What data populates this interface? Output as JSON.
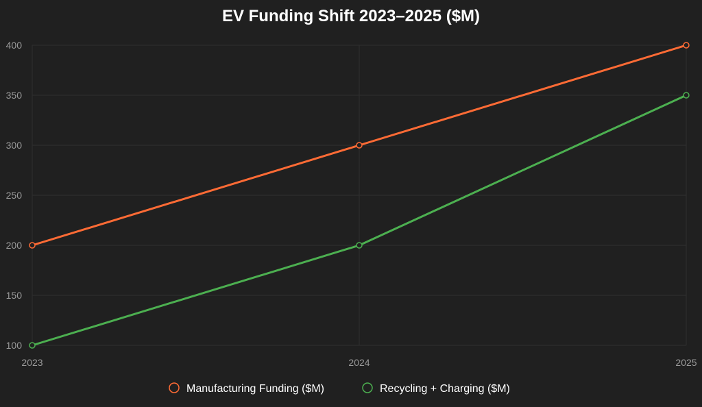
{
  "chart_data": {
    "type": "line",
    "title": "EV Funding Shift 2023–2025 ($M)",
    "xlabel": "",
    "ylabel": "",
    "x": [
      "2023",
      "2024",
      "2025"
    ],
    "ylim": [
      100,
      400
    ],
    "yticks": [
      100,
      150,
      200,
      250,
      300,
      350,
      400
    ],
    "grid": true,
    "legend_position": "bottom",
    "series": [
      {
        "name": "Manufacturing Funding ($M)",
        "values": [
          200,
          300,
          400
        ],
        "color": "#ff6b35"
      },
      {
        "name": "Recycling + Charging ($M)",
        "values": [
          100,
          200,
          350
        ],
        "color": "#4caf50"
      }
    ]
  },
  "colors": {
    "background": "#202020",
    "title": "#ffffff",
    "tick_text": "#9a9a9a",
    "grid": "#2f2f2f",
    "legend_text": "#ffffff"
  }
}
